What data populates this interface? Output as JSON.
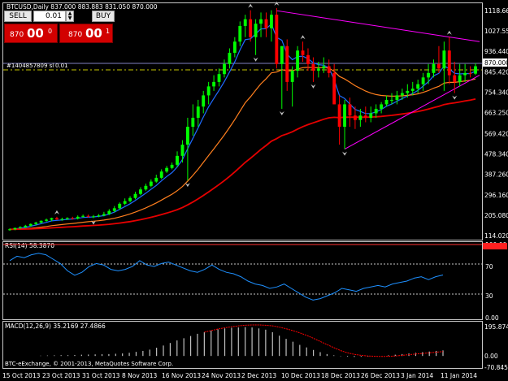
{
  "chart_header": "BTCUSD,Daily  837.000 883.883 831.050 870.000",
  "trade_panel": {
    "sell_label": "SELL",
    "buy_label": "BUY",
    "lot_value": "0.01",
    "sell_price": {
      "small": "870",
      "big": "00",
      "sup": "0"
    },
    "buy_price": {
      "small": "870",
      "big": "00",
      "sup": "1"
    }
  },
  "order_line_label": "#1404857809 sl",
  "order_line_lot": "0.01",
  "price_axis": [
    "1118.660",
    "1027.550",
    "936.440",
    "845.420",
    "754.340",
    "663.250",
    "569.420",
    "478.340",
    "387.260",
    "296.160",
    "205.080",
    "114.020"
  ],
  "current_price_label": "870.000",
  "rsi_header": "RSI(14) 58.3870",
  "rsi_axis": [
    "100.00",
    "70",
    "30",
    "0.00"
  ],
  "macd_header": "MACD(12,26,9) 35.2169 27.4866",
  "macd_axis": [
    "195.8742",
    "0.00",
    "-70.8456"
  ],
  "footer": "BTC-eExchange, © 2001-2013, MetaQuotes Software Corp.",
  "date_axis": [
    "15 Oct 2013",
    "23 Oct 2013",
    "31 Oct 2013",
    "8 Nov 2013",
    "16 Nov 2013",
    "24 Nov 2013",
    "2 Dec 2013",
    "10 Dec 2013",
    "18 Dec 2013",
    "26 Dec 2013",
    "3 Jan 2014",
    "11 Jan 2014"
  ],
  "colors": {
    "background": "#000000",
    "bull_candle": "#00ff00",
    "bear_candle": "#ff0000",
    "ma_fast": "#1e6cff",
    "ma_mid": "#ff7f1e",
    "ma_slow": "#e60000",
    "trendline": "#ff00ff",
    "rsi_line": "#1e90ff",
    "macd_hist": "#c0c0c0",
    "macd_signal": "#ff0000"
  },
  "chart_data": [
    {
      "type": "candlestick",
      "name": "BTCUSD Daily",
      "ylim": [
        114.02,
        1118.66
      ],
      "x": [
        "2013-10-15",
        "2013-10-16",
        "2013-10-17",
        "2013-10-18",
        "2013-10-19",
        "2013-10-20",
        "2013-10-21",
        "2013-10-22",
        "2013-10-23",
        "2013-10-24",
        "2013-10-25",
        "2013-10-26",
        "2013-10-27",
        "2013-10-28",
        "2013-10-29",
        "2013-10-30",
        "2013-10-31",
        "2013-11-01",
        "2013-11-02",
        "2013-11-03",
        "2013-11-04",
        "2013-11-05",
        "2013-11-06",
        "2013-11-07",
        "2013-11-08",
        "2013-11-09",
        "2013-11-10",
        "2013-11-11",
        "2013-11-12",
        "2013-11-13",
        "2013-11-14",
        "2013-11-15",
        "2013-11-16",
        "2013-11-17",
        "2013-11-18",
        "2013-11-19",
        "2013-11-20",
        "2013-11-21",
        "2013-11-22",
        "2013-11-23",
        "2013-11-24",
        "2013-11-25",
        "2013-11-26",
        "2013-11-27",
        "2013-11-28",
        "2013-11-29",
        "2013-11-30",
        "2013-12-01",
        "2013-12-02",
        "2013-12-03",
        "2013-12-04",
        "2013-12-05",
        "2013-12-06",
        "2013-12-07",
        "2013-12-08",
        "2013-12-09",
        "2013-12-10",
        "2013-12-11",
        "2013-12-12",
        "2013-12-13",
        "2013-12-14",
        "2013-12-15",
        "2013-12-16",
        "2013-12-17",
        "2013-12-18",
        "2013-12-19",
        "2013-12-20",
        "2013-12-21",
        "2013-12-22",
        "2013-12-23",
        "2013-12-24",
        "2013-12-25",
        "2013-12-26",
        "2013-12-27",
        "2013-12-28",
        "2013-12-29",
        "2013-12-30",
        "2013-12-31",
        "2014-01-01",
        "2014-01-02",
        "2014-01-03",
        "2014-01-04",
        "2014-01-05",
        "2014-01-06",
        "2014-01-07",
        "2014-01-08",
        "2014-01-09",
        "2014-01-10",
        "2014-01-11",
        "2014-01-12"
      ],
      "open": [
        140,
        142,
        148,
        152,
        158,
        166,
        172,
        180,
        185,
        192,
        186,
        188,
        192,
        190,
        198,
        202,
        199,
        200,
        204,
        210,
        224,
        236,
        256,
        268,
        282,
        300,
        320,
        336,
        355,
        372,
        400,
        416,
        430,
        470,
        520,
        600,
        640,
        690,
        740,
        780,
        800,
        835,
        880,
        930,
        980,
        1050,
        1080,
        1000,
        1060,
        1080,
        1040,
        1100,
        880,
        960,
        800,
        850,
        940,
        920,
        880,
        850,
        860,
        870,
        840,
        700,
        600,
        700,
        650,
        630,
        650,
        640,
        660,
        680,
        700,
        720,
        720,
        740,
        750,
        760,
        770,
        790,
        820,
        840,
        880,
        860,
        940,
        830,
        800,
        830,
        840,
        837
      ],
      "high": [
        146,
        150,
        156,
        162,
        168,
        176,
        182,
        190,
        194,
        198,
        194,
        196,
        198,
        204,
        208,
        208,
        206,
        210,
        220,
        232,
        246,
        262,
        280,
        290,
        310,
        330,
        346,
        365,
        386,
        410,
        425,
        440,
        490,
        540,
        640,
        700,
        720,
        760,
        800,
        830,
        860,
        900,
        950,
        1000,
        1070,
        1100,
        1120,
        1080,
        1110,
        1110,
        1120,
        1130,
        960,
        990,
        870,
        960,
        980,
        950,
        910,
        890,
        910,
        900,
        880,
        740,
        720,
        730,
        690,
        680,
        690,
        690,
        700,
        710,
        740,
        750,
        760,
        770,
        790,
        800,
        810,
        840,
        880,
        900,
        960,
        980,
        1000,
        890,
        880,
        880,
        870,
        883.883
      ],
      "low": [
        136,
        138,
        144,
        148,
        154,
        160,
        168,
        176,
        178,
        184,
        180,
        184,
        186,
        186,
        194,
        194,
        192,
        196,
        200,
        206,
        218,
        230,
        250,
        262,
        276,
        294,
        314,
        330,
        350,
        366,
        394,
        410,
        420,
        440,
        360,
        560,
        600,
        660,
        700,
        760,
        780,
        820,
        860,
        910,
        960,
        1000,
        980,
        920,
        1000,
        1000,
        980,
        860,
        680,
        760,
        690,
        820,
        890,
        850,
        800,
        820,
        840,
        820,
        700,
        520,
        500,
        600,
        590,
        600,
        620,
        620,
        640,
        660,
        690,
        700,
        700,
        720,
        730,
        740,
        750,
        760,
        790,
        820,
        840,
        760,
        790,
        750,
        780,
        800,
        820,
        831.05
      ],
      "close": [
        142,
        148,
        152,
        158,
        166,
        172,
        180,
        185,
        192,
        186,
        188,
        192,
        190,
        198,
        202,
        199,
        200,
        204,
        210,
        224,
        236,
        256,
        268,
        282,
        300,
        320,
        336,
        355,
        372,
        400,
        416,
        430,
        470,
        520,
        600,
        640,
        690,
        740,
        780,
        800,
        835,
        880,
        930,
        980,
        1050,
        1080,
        1000,
        1060,
        1080,
        1040,
        1100,
        880,
        960,
        800,
        850,
        940,
        920,
        880,
        850,
        860,
        870,
        840,
        700,
        600,
        700,
        650,
        630,
        650,
        640,
        660,
        680,
        700,
        720,
        720,
        740,
        750,
        760,
        770,
        790,
        820,
        840,
        880,
        860,
        940,
        830,
        800,
        830,
        840,
        837,
        870
      ]
    },
    {
      "type": "line",
      "name": "RSI(14)",
      "ylim": [
        0,
        100
      ],
      "values": [
        78,
        84,
        82,
        86,
        88,
        86,
        80,
        74,
        64,
        58,
        62,
        70,
        74,
        72,
        66,
        64,
        66,
        70,
        78,
        72,
        70,
        74,
        76,
        72,
        68,
        64,
        62,
        66,
        72,
        66,
        62,
        60,
        56,
        50,
        46,
        44,
        40,
        42,
        46,
        40,
        34,
        28,
        24,
        26,
        30,
        34,
        40,
        38,
        36,
        40,
        42,
        44,
        42,
        46,
        48,
        50,
        54,
        56,
        52,
        56,
        58.387
      ]
    },
    {
      "type": "bar",
      "name": "MACD(12,26,9)",
      "ylim": [
        -70.8456,
        195.8742
      ],
      "values": [
        2,
        3,
        4,
        5,
        5,
        6,
        8,
        9,
        10,
        11,
        12,
        14,
        16,
        20,
        26,
        32,
        40,
        52,
        66,
        82,
        98,
        112,
        126,
        140,
        150,
        160,
        168,
        174,
        178,
        180,
        182,
        180,
        174,
        166,
        150,
        128,
        108,
        90,
        70,
        54,
        38,
        24,
        12,
        4,
        -2,
        -4,
        -6,
        -5,
        -4,
        -2,
        0,
        4,
        8,
        12,
        16,
        20,
        24,
        28,
        32,
        35.2169
      ],
      "signal": [
        null,
        null,
        null,
        null,
        null,
        null,
        null,
        null,
        null,
        null,
        null,
        null,
        null,
        null,
        null,
        null,
        null,
        null,
        null,
        null,
        null,
        null,
        null,
        null,
        150,
        160,
        170,
        178,
        184,
        190,
        194,
        196,
        196,
        194,
        190,
        182,
        172,
        160,
        146,
        130,
        112,
        92,
        72,
        52,
        34,
        20,
        10,
        4,
        0,
        -2,
        -3,
        -2,
        0,
        4,
        8,
        12,
        16,
        20,
        24,
        27.4866
      ]
    }
  ]
}
